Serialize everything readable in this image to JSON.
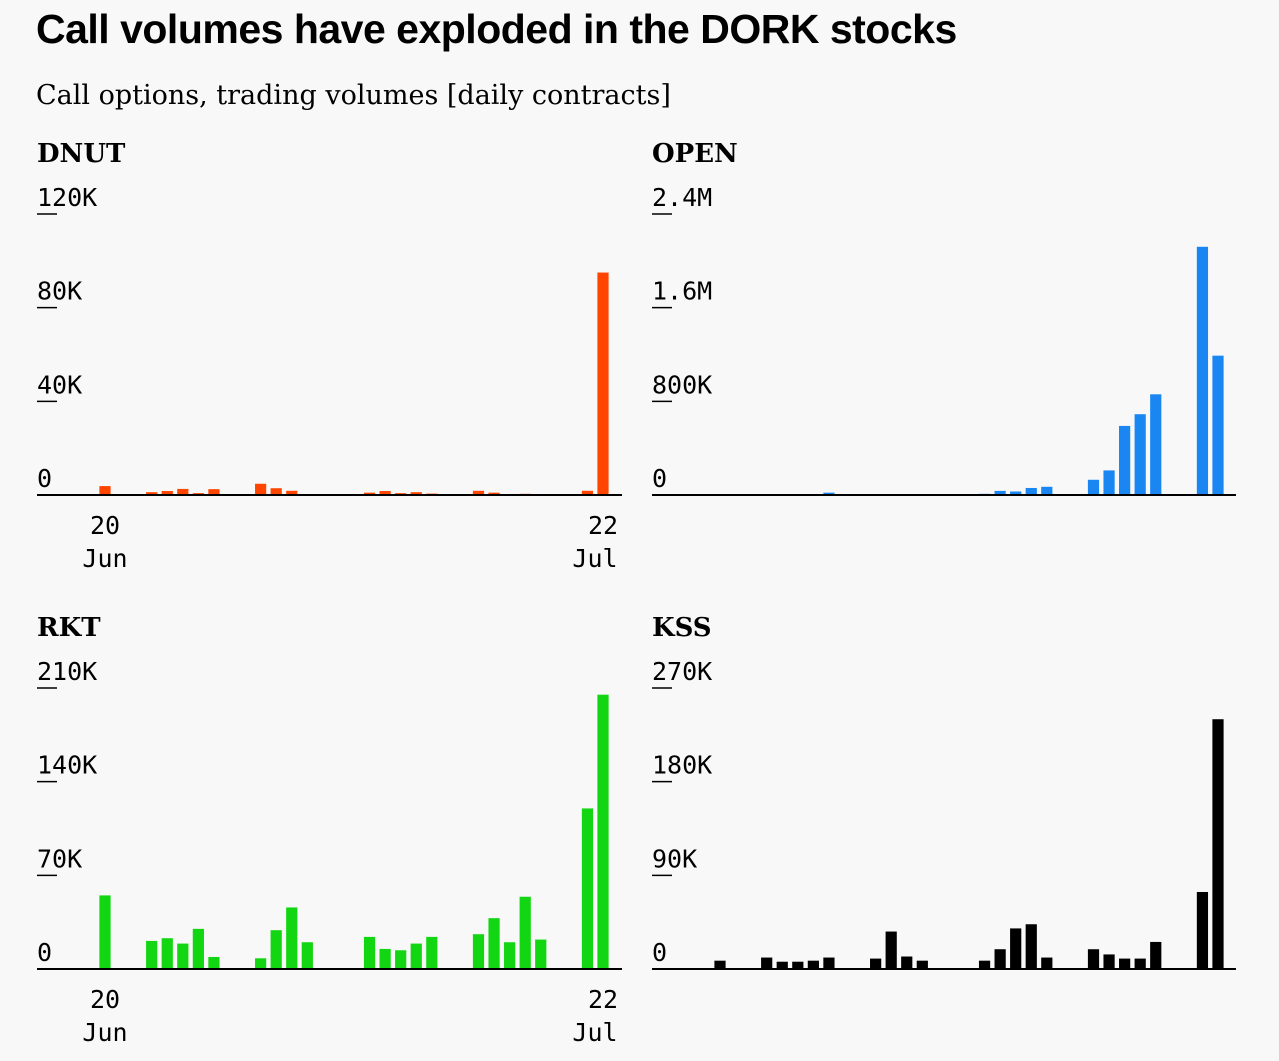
{
  "title": "Call volumes have exploded in the DORK stocks",
  "subtitle": "Call options, trading volumes [daily contracts]",
  "chart_data": [
    {
      "type": "bar",
      "name": "DNUT",
      "color": "#ff4500",
      "ylim": [
        0,
        120000
      ],
      "yticks": [
        0,
        40000,
        80000,
        120000
      ],
      "ytick_labels": [
        "0",
        "40K",
        "80K",
        "120K"
      ],
      "xticks": [
        {
          "day": 20,
          "month": "Jun"
        },
        {
          "day": 22,
          "month": "Jul"
        }
      ],
      "x": [
        "2025-06-20",
        "2025-06-23",
        "2025-06-24",
        "2025-06-25",
        "2025-06-26",
        "2025-06-27",
        "2025-06-30",
        "2025-07-01",
        "2025-07-02",
        "2025-07-03",
        "2025-07-07",
        "2025-07-08",
        "2025-07-09",
        "2025-07-10",
        "2025-07-11",
        "2025-07-14",
        "2025-07-15",
        "2025-07-16",
        "2025-07-17",
        "2025-07-18",
        "2025-07-21",
        "2025-07-22"
      ],
      "values": [
        3800,
        1200,
        1700,
        2600,
        800,
        2500,
        4800,
        2900,
        1800,
        300,
        1000,
        1700,
        800,
        1200,
        600,
        1800,
        1000,
        400,
        500,
        300,
        1800,
        95000
      ]
    },
    {
      "type": "bar",
      "name": "OPEN",
      "color": "#1a86f2",
      "ylim": [
        0,
        2400000
      ],
      "yticks": [
        0,
        800000,
        1600000,
        2400000
      ],
      "ytick_labels": [
        "0",
        "800K",
        "1.6M",
        "2.4M"
      ],
      "xticks": [],
      "x": [
        "2025-06-20",
        "2025-06-23",
        "2025-06-24",
        "2025-06-25",
        "2025-06-26",
        "2025-06-27",
        "2025-06-30",
        "2025-07-01",
        "2025-07-02",
        "2025-07-03",
        "2025-07-07",
        "2025-07-08",
        "2025-07-09",
        "2025-07-10",
        "2025-07-11",
        "2025-07-14",
        "2025-07-15",
        "2025-07-16",
        "2025-07-17",
        "2025-07-18",
        "2025-07-21",
        "2025-07-22"
      ],
      "values": [
        3000,
        5000,
        6000,
        5000,
        4000,
        20000,
        3000,
        4000,
        5000,
        6000,
        10000,
        35000,
        30000,
        60000,
        70000,
        130000,
        210000,
        590000,
        690000,
        860000,
        2120000,
        1190000
      ]
    },
    {
      "type": "bar",
      "name": "RKT",
      "color": "#11d611",
      "ylim": [
        0,
        210000
      ],
      "yticks": [
        0,
        70000,
        140000,
        210000
      ],
      "ytick_labels": [
        "0",
        "70K",
        "140K",
        "210K"
      ],
      "xticks": [
        {
          "day": 20,
          "month": "Jun"
        },
        {
          "day": 22,
          "month": "Jul"
        }
      ],
      "x": [
        "2025-06-20",
        "2025-06-23",
        "2025-06-24",
        "2025-06-25",
        "2025-06-26",
        "2025-06-27",
        "2025-06-30",
        "2025-07-01",
        "2025-07-02",
        "2025-07-03",
        "2025-07-07",
        "2025-07-08",
        "2025-07-09",
        "2025-07-10",
        "2025-07-11",
        "2025-07-14",
        "2025-07-15",
        "2025-07-16",
        "2025-07-17",
        "2025-07-18",
        "2025-07-21",
        "2025-07-22"
      ],
      "values": [
        55000,
        21000,
        23000,
        19000,
        30000,
        9000,
        8000,
        29000,
        46000,
        20000,
        24000,
        15000,
        14000,
        19000,
        24000,
        26000,
        38000,
        20000,
        54000,
        22000,
        120000,
        205000
      ]
    },
    {
      "type": "bar",
      "name": "KSS",
      "color": "#000000",
      "ylim": [
        0,
        270000
      ],
      "yticks": [
        0,
        90000,
        180000,
        270000
      ],
      "ytick_labels": [
        "0",
        "90K",
        "180K",
        "270K"
      ],
      "xticks": [],
      "x": [
        "2025-06-20",
        "2025-06-23",
        "2025-06-24",
        "2025-06-25",
        "2025-06-26",
        "2025-06-27",
        "2025-06-30",
        "2025-07-01",
        "2025-07-02",
        "2025-07-03",
        "2025-07-07",
        "2025-07-08",
        "2025-07-09",
        "2025-07-10",
        "2025-07-11",
        "2025-07-14",
        "2025-07-15",
        "2025-07-16",
        "2025-07-17",
        "2025-07-18",
        "2025-07-21",
        "2025-07-22"
      ],
      "values": [
        8000,
        11000,
        7000,
        7000,
        8000,
        11000,
        10000,
        36000,
        12000,
        8000,
        8000,
        19000,
        39000,
        43000,
        11000,
        19000,
        14000,
        10000,
        10000,
        26000,
        74000,
        240000
      ]
    }
  ]
}
